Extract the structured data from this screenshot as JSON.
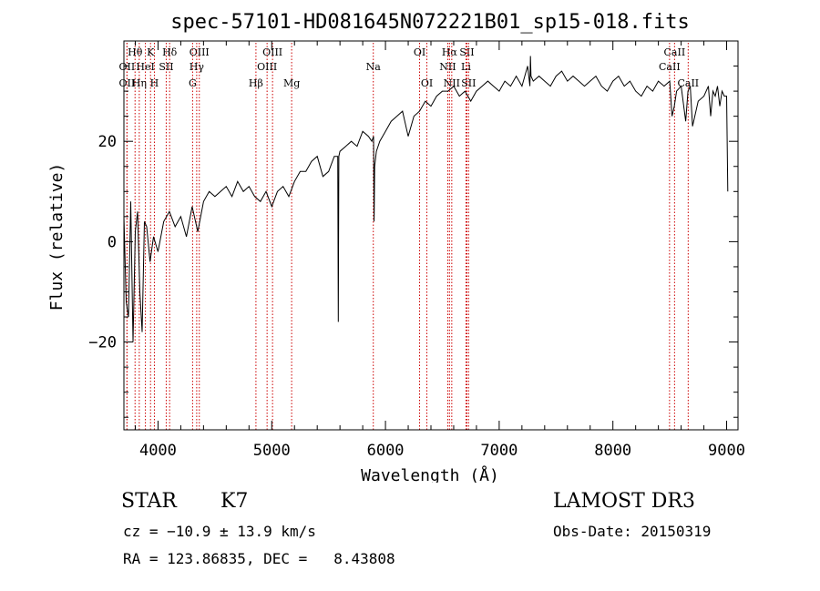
{
  "chart_data": {
    "type": "line",
    "title": "spec-57101-HD081645N072221B01_sp15-018.fits",
    "xlabel": "Wavelength (Å)",
    "ylabel": "Flux (relative)",
    "xlim": [
      3700,
      9100
    ],
    "ylim": [
      -37.5,
      40
    ],
    "xticks": [
      4000,
      5000,
      6000,
      7000,
      8000,
      9000
    ],
    "yticks": [
      -20,
      0,
      20
    ],
    "series": [
      {
        "name": "flux",
        "x": [
          3700,
          3720,
          3740,
          3760,
          3780,
          3800,
          3820,
          3840,
          3860,
          3880,
          3900,
          3930,
          3960,
          4000,
          4050,
          4100,
          4150,
          4200,
          4250,
          4300,
          4350,
          4400,
          4450,
          4500,
          4550,
          4600,
          4650,
          4700,
          4750,
          4800,
          4850,
          4900,
          4950,
          5000,
          5050,
          5100,
          5150,
          5200,
          5250,
          5300,
          5350,
          5400,
          5450,
          5500,
          5550,
          5580,
          5585,
          5590,
          5600,
          5650,
          5700,
          5750,
          5800,
          5850,
          5880,
          5895,
          5900,
          5905,
          5920,
          5950,
          6000,
          6050,
          6100,
          6150,
          6200,
          6250,
          6300,
          6350,
          6400,
          6450,
          6500,
          6550,
          6600,
          6650,
          6700,
          6750,
          6800,
          6850,
          6900,
          6950,
          7000,
          7050,
          7100,
          7150,
          7200,
          7250,
          7270,
          7275,
          7280,
          7300,
          7350,
          7400,
          7450,
          7500,
          7550,
          7600,
          7650,
          7700,
          7750,
          7800,
          7850,
          7900,
          7950,
          8000,
          8050,
          8100,
          8150,
          8200,
          8250,
          8300,
          8350,
          8400,
          8450,
          8500,
          8520,
          8540,
          8560,
          8600,
          8640,
          8660,
          8680,
          8700,
          8750,
          8800,
          8840,
          8860,
          8880,
          8900,
          8920,
          8940,
          8960,
          8980,
          9000,
          9010
        ],
        "values": [
          5,
          -12,
          -15,
          8,
          -20,
          2,
          6,
          -10,
          -18,
          4,
          3,
          -4,
          1,
          -2,
          4,
          6,
          3,
          5,
          1,
          7,
          2,
          8,
          10,
          9,
          10,
          11,
          9,
          12,
          10,
          11,
          9,
          8,
          10,
          7,
          10,
          11,
          9,
          12,
          14,
          14,
          16,
          17,
          13,
          14,
          17,
          17,
          -16,
          17,
          18,
          19,
          20,
          19,
          22,
          21,
          20,
          21,
          4,
          15,
          18,
          20,
          22,
          24,
          25,
          26,
          21,
          25,
          26,
          28,
          27,
          29,
          30,
          30,
          31,
          29,
          30,
          28,
          30,
          31,
          32,
          31,
          30,
          32,
          31,
          33,
          31,
          35,
          31,
          37,
          33,
          32,
          33,
          32,
          31,
          33,
          34,
          32,
          33,
          32,
          31,
          32,
          33,
          31,
          30,
          32,
          33,
          31,
          32,
          30,
          29,
          31,
          30,
          32,
          31,
          32,
          25,
          27,
          30,
          31,
          24,
          30,
          31,
          23,
          28,
          29,
          31,
          25,
          30,
          29,
          31,
          27,
          30,
          29,
          29,
          10
        ]
      }
    ],
    "lines": [
      {
        "name": "Hθ",
        "w": 3798,
        "row": 1
      },
      {
        "name": "OII",
        "w": 3727,
        "row": 2
      },
      {
        "name": "OII",
        "w": 3727,
        "row": 3
      },
      {
        "name": "K",
        "w": 3934,
        "row": 1
      },
      {
        "name": "HeI",
        "w": 3889,
        "row": 2
      },
      {
        "name": "Hη",
        "w": 3835,
        "row": 3
      },
      {
        "name": "Hδ",
        "w": 4102,
        "row": 1
      },
      {
        "name": "SII",
        "w": 4072,
        "row": 2
      },
      {
        "name": "H",
        "w": 3968,
        "row": 3
      },
      {
        "name": "OIII",
        "w": 4363,
        "row": 1
      },
      {
        "name": "Hγ",
        "w": 4340,
        "row": 2
      },
      {
        "name": "G",
        "w": 4304,
        "row": 3
      },
      {
        "name": "OIII",
        "w": 5007,
        "row": 1
      },
      {
        "name": "OIII",
        "w": 4959,
        "row": 2
      },
      {
        "name": "Hβ",
        "w": 4861,
        "row": 3
      },
      {
        "name": "Mg",
        "w": 5175,
        "row": 3
      },
      {
        "name": "Na",
        "w": 5893,
        "row": 2
      },
      {
        "name": "OI",
        "w": 6300,
        "row": 1
      },
      {
        "name": "OI",
        "w": 6364,
        "row": 3
      },
      {
        "name": "Hα",
        "w": 6563,
        "row": 1
      },
      {
        "name": "NII",
        "w": 6548,
        "row": 2
      },
      {
        "name": "NII",
        "w": 6583,
        "row": 3
      },
      {
        "name": "SII",
        "w": 6716,
        "row": 1
      },
      {
        "name": "Li",
        "w": 6708,
        "row": 2
      },
      {
        "name": "SII",
        "w": 6731,
        "row": 3
      },
      {
        "name": "CaII",
        "w": 8542,
        "row": 1
      },
      {
        "name": "CaII",
        "w": 8498,
        "row": 2
      },
      {
        "name": "CaII",
        "w": 8662,
        "row": 3
      }
    ]
  },
  "info": {
    "object_class": "STAR",
    "subclass": "K7",
    "survey": "LAMOST DR3",
    "redshift": "cz = −10.9 ± 13.9 km/s",
    "obs_date": "Obs-Date: 20150319",
    "coords": "RA = 123.86835, DEC =   8.43808"
  },
  "colors": {
    "line_marker": "#cc0000",
    "spectrum": "#000000"
  }
}
